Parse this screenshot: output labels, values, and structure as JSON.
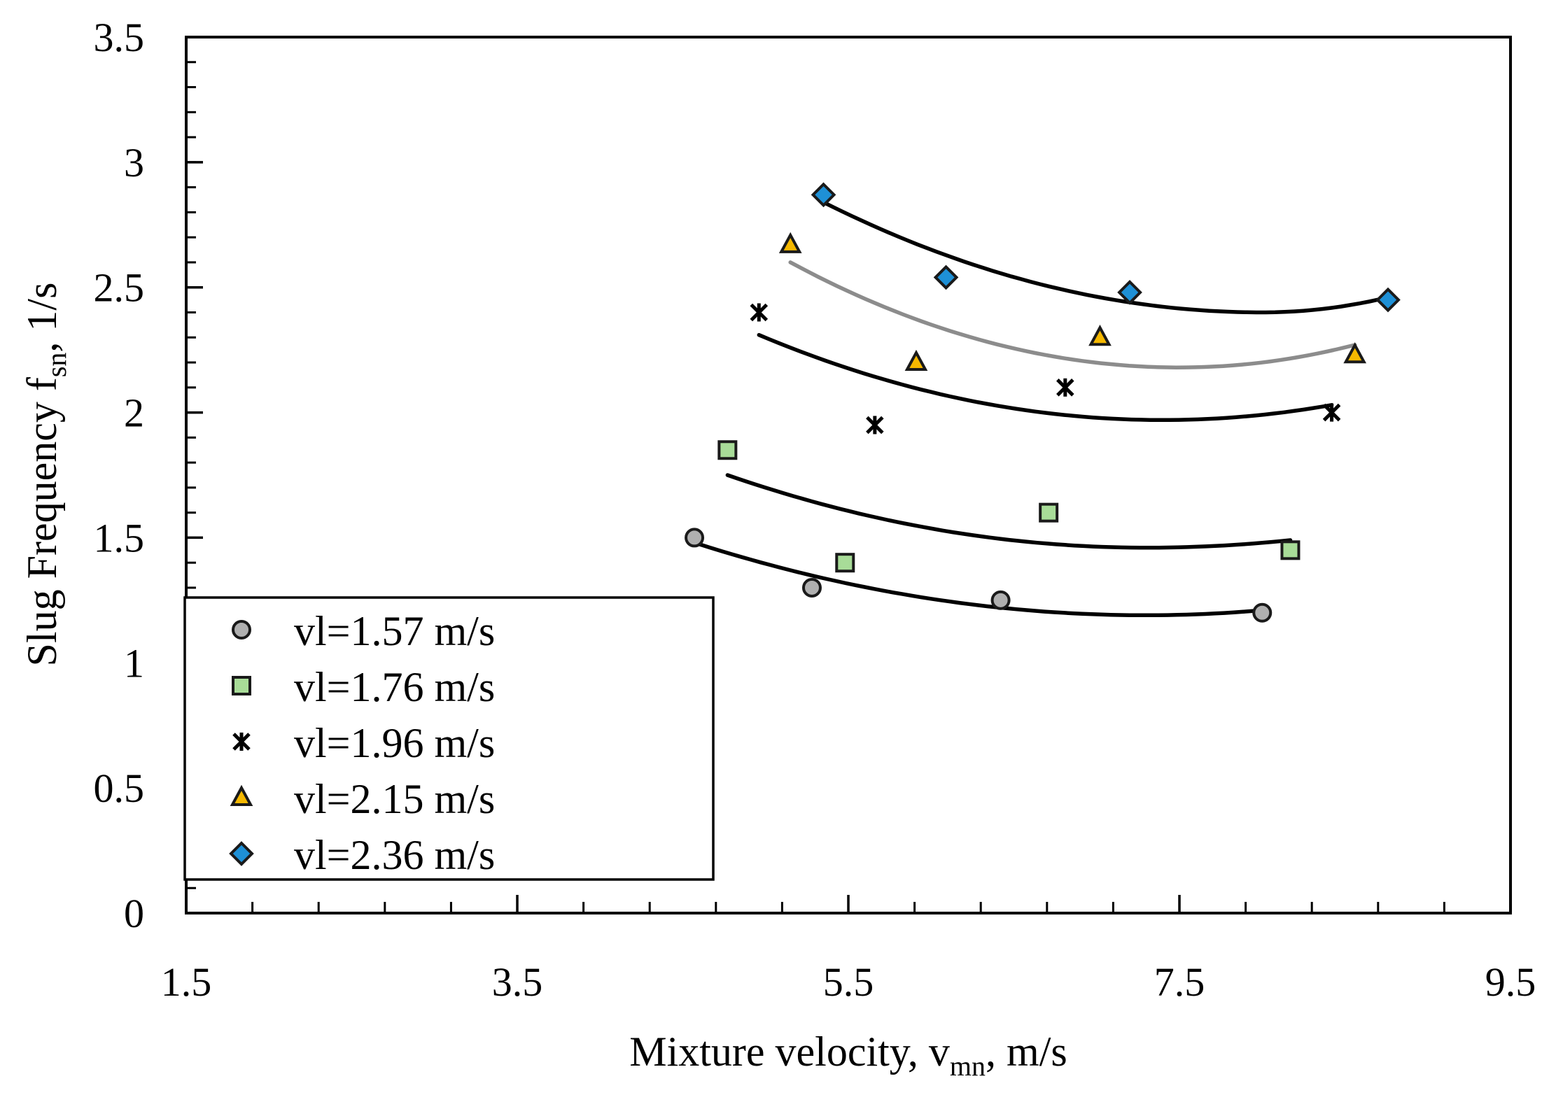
{
  "chart_data": {
    "type": "scatter",
    "title": "",
    "xlabel": {
      "main": "Mixture velocity, v",
      "sub": "mn",
      "tail": ", m/s"
    },
    "ylabel": {
      "main": "Slug Frequency f",
      "sub": "sn",
      "tail": ", 1/s"
    },
    "xlim": [
      1.5,
      9.5
    ],
    "ylim": [
      0,
      3.5
    ],
    "xticks": [
      1.5,
      3.5,
      5.5,
      7.5,
      9.5
    ],
    "xtick_labels": [
      "1.5",
      "3.5",
      "5.5",
      "7.5",
      "9.5"
    ],
    "yticks": [
      0,
      0.5,
      1,
      1.5,
      2,
      2.5,
      3,
      3.5
    ],
    "ytick_labels": [
      "0",
      "0.5",
      "1",
      "1.5",
      "2",
      "2.5",
      "3",
      "3.5"
    ],
    "x_minor_step": 0.4,
    "y_minor_step": 0.1,
    "legend_position": "bottom-left",
    "series": [
      {
        "name": "vl=1.57 m/s",
        "marker": "circle",
        "color": "#b0b0b0",
        "x": [
          4.57,
          5.28,
          6.42,
          8.0
        ],
        "y": [
          1.5,
          1.3,
          1.25,
          1.2
        ],
        "trend": {
          "color": "#000000",
          "x": [
            4.57,
            8.0
          ],
          "y_at_start": 1.48,
          "y_at_end": 1.21,
          "y_min": 1.19,
          "x_min": 7.3
        }
      },
      {
        "name": "vl=1.76 m/s",
        "marker": "square",
        "color": "#a8dc98",
        "x": [
          4.77,
          5.48,
          6.71,
          8.17
        ],
        "y": [
          1.85,
          1.4,
          1.6,
          1.45
        ],
        "trend": {
          "color": "#000000",
          "x": [
            4.77,
            8.17
          ],
          "y_at_start": 1.75,
          "y_at_end": 1.49,
          "y_min": 1.46,
          "x_min": 7.3
        }
      },
      {
        "name": "vl=1.96 m/s",
        "marker": "asterisk",
        "color": "#000000",
        "x": [
          4.96,
          5.66,
          6.81,
          8.42
        ],
        "y": [
          2.4,
          1.95,
          2.1,
          2.0
        ],
        "trend": {
          "color": "#000000",
          "x": [
            4.96,
            8.42
          ],
          "y_at_start": 2.31,
          "y_at_end": 2.03,
          "y_min": 1.97,
          "x_min": 7.4
        }
      },
      {
        "name": "vl=2.15 m/s",
        "marker": "triangle",
        "color": "#f5b800",
        "x": [
          5.15,
          5.91,
          7.02,
          8.56
        ],
        "y": [
          2.67,
          2.2,
          2.3,
          2.23
        ],
        "trend": {
          "color": "#8c8c8c",
          "x": [
            5.15,
            8.56
          ],
          "y_at_start": 2.6,
          "y_at_end": 2.27,
          "y_min": 2.18,
          "x_min": 7.5
        }
      },
      {
        "name": "vl=2.36 m/s",
        "marker": "diamond",
        "color": "#1e90d6",
        "x": [
          5.35,
          6.09,
          7.2,
          8.76
        ],
        "y": [
          2.87,
          2.54,
          2.48,
          2.45
        ],
        "trend": {
          "color": "#000000",
          "x": [
            5.35,
            8.76
          ],
          "y_at_start": 2.84,
          "y_at_end": 2.46,
          "y_min": 2.4,
          "x_min": 8.0
        }
      }
    ]
  }
}
